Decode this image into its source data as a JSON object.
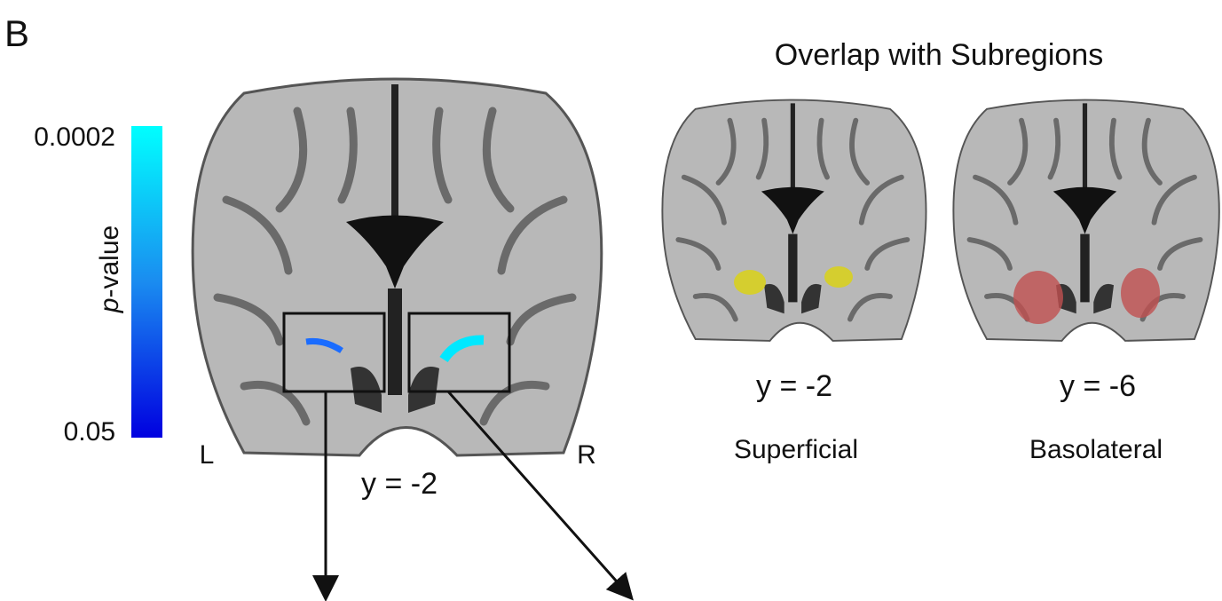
{
  "panel_label": "B",
  "colorbar": {
    "label_italic": "p",
    "label_rest": "-value",
    "top_label": "0.0002",
    "bottom_label": "0.05"
  },
  "main_image": {
    "left_label": "L",
    "right_label": "R",
    "coordinate": "y = -2"
  },
  "subregions": {
    "title": "Overlap with Subregions",
    "panels": [
      {
        "coordinate": "y = -2",
        "label": "Superficial"
      },
      {
        "coordinate": "y = -6",
        "label": "Basolateral"
      }
    ]
  }
}
